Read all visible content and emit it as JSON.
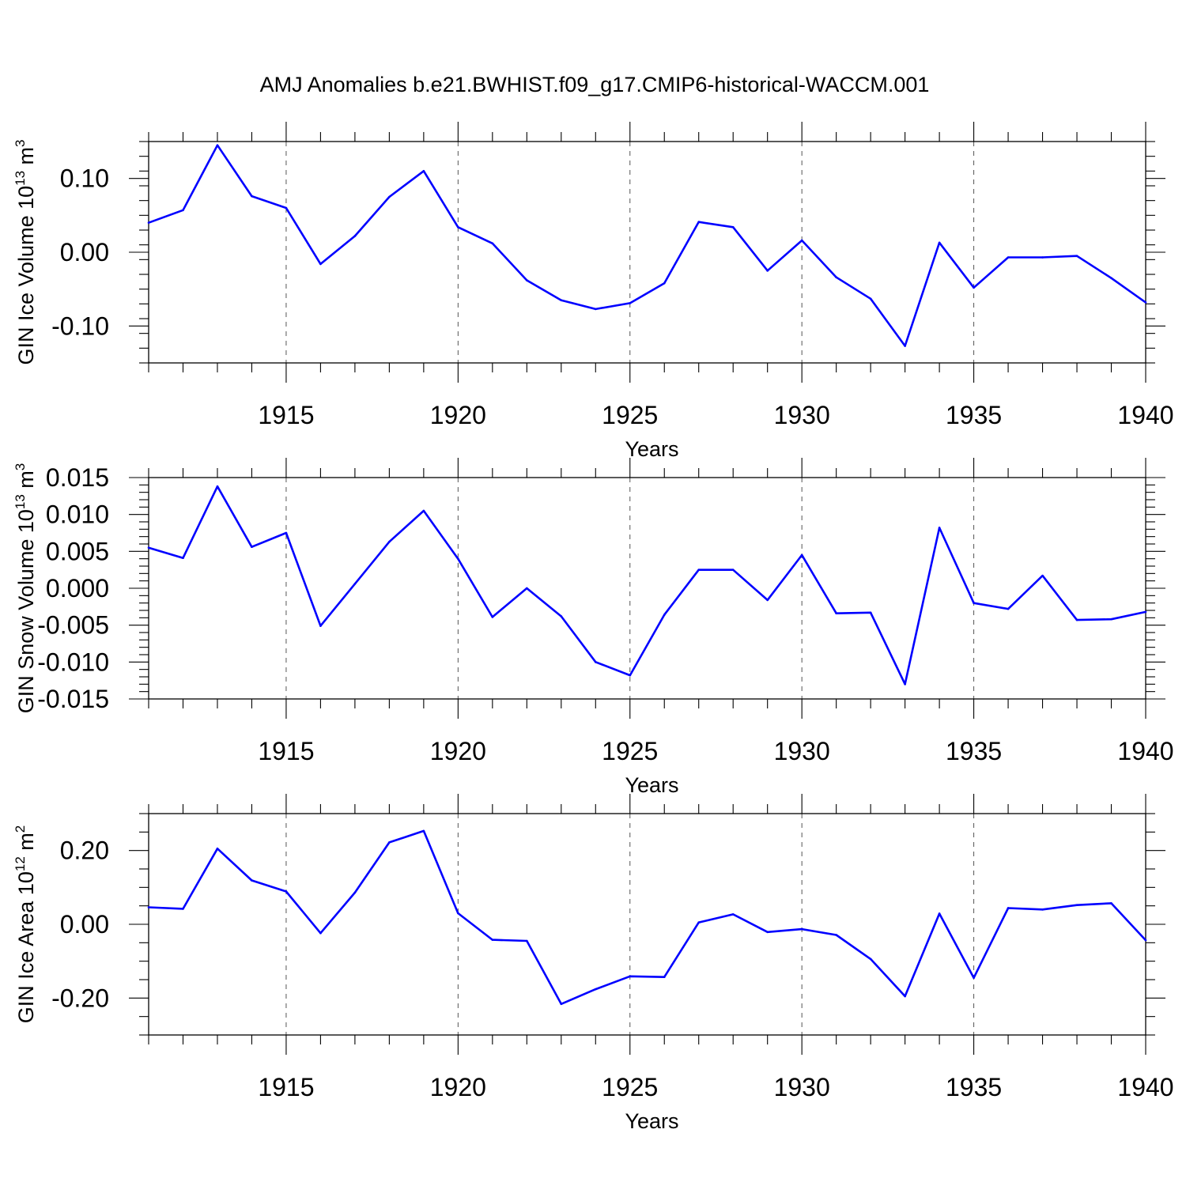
{
  "title": "AMJ Anomalies b.e21.BWHIST.f09_g17.CMIP6-historical-WACCM.001",
  "line_color": "#0000ff",
  "chart_data": [
    {
      "type": "line",
      "ylabel": "GIN Ice Volume 10",
      "ylabel_exp": "13",
      "ylabel_unit": " m",
      "ylabel_unit_exp": "3",
      "xlabel": "Years",
      "xlim": [
        1911,
        1940
      ],
      "ylim": [
        -0.15,
        0.15
      ],
      "xticks": [
        1915,
        1920,
        1925,
        1930,
        1935,
        1940
      ],
      "xtick_labels": [
        "1915",
        "1920",
        "1925",
        "1930",
        "1935",
        "1940"
      ],
      "yticks": [
        -0.1,
        0.0,
        0.1
      ],
      "ytick_labels": [
        "-0.10",
        "0.00",
        "0.10"
      ],
      "yminor_step": 0.02,
      "grid_x": true,
      "x": [
        1911,
        1912,
        1913,
        1914,
        1915,
        1916,
        1917,
        1918,
        1919,
        1920,
        1921,
        1922,
        1923,
        1924,
        1925,
        1926,
        1927,
        1928,
        1929,
        1930,
        1931,
        1932,
        1933,
        1934,
        1935,
        1936,
        1937,
        1938,
        1939,
        1940
      ],
      "values": [
        0.04,
        0.057,
        0.145,
        0.076,
        0.06,
        -0.016,
        0.022,
        0.075,
        0.11,
        0.034,
        0.012,
        -0.038,
        -0.065,
        -0.077,
        -0.069,
        -0.042,
        0.041,
        0.034,
        -0.025,
        0.016,
        -0.034,
        -0.063,
        -0.127,
        0.013,
        -0.048,
        -0.007,
        -0.007,
        -0.005,
        -0.035,
        -0.068
      ]
    },
    {
      "type": "line",
      "ylabel": "GIN Snow Volume 10",
      "ylabel_exp": "13",
      "ylabel_unit": " m",
      "ylabel_unit_exp": "3",
      "xlabel": "Years",
      "xlim": [
        1911,
        1940
      ],
      "ylim": [
        -0.015,
        0.015
      ],
      "xticks": [
        1915,
        1920,
        1925,
        1930,
        1935,
        1940
      ],
      "xtick_labels": [
        "1915",
        "1920",
        "1925",
        "1930",
        "1935",
        "1940"
      ],
      "yticks": [
        -0.015,
        -0.01,
        -0.005,
        0.0,
        0.005,
        0.01,
        0.015
      ],
      "ytick_labels": [
        "-0.015",
        "-0.010",
        "-0.005",
        "0.000",
        "0.005",
        "0.010",
        "0.015"
      ],
      "yminor_step": 0.001,
      "grid_x": true,
      "x": [
        1911,
        1912,
        1913,
        1914,
        1915,
        1916,
        1917,
        1918,
        1919,
        1920,
        1921,
        1922,
        1923,
        1924,
        1925,
        1926,
        1927,
        1928,
        1929,
        1930,
        1931,
        1932,
        1933,
        1934,
        1935,
        1936,
        1937,
        1938,
        1939,
        1940
      ],
      "values": [
        0.0055,
        0.0041,
        0.0138,
        0.0056,
        0.0075,
        -0.0051,
        0.0006,
        0.0063,
        0.0105,
        0.004,
        -0.0039,
        0.0,
        -0.0038,
        -0.01,
        -0.0118,
        -0.0036,
        0.0025,
        0.0025,
        -0.0016,
        0.0045,
        -0.0034,
        -0.0033,
        -0.013,
        0.0082,
        -0.002,
        -0.0028,
        0.0017,
        -0.0043,
        -0.0042,
        -0.0032
      ]
    },
    {
      "type": "line",
      "ylabel": "GIN Ice Area 10",
      "ylabel_exp": "12",
      "ylabel_unit": " m",
      "ylabel_unit_exp": "2",
      "xlabel": "Years",
      "xlim": [
        1911,
        1940
      ],
      "ylim": [
        -0.3,
        0.3
      ],
      "xticks": [
        1915,
        1920,
        1925,
        1930,
        1935,
        1940
      ],
      "xtick_labels": [
        "1915",
        "1920",
        "1925",
        "1930",
        "1935",
        "1940"
      ],
      "yticks": [
        -0.2,
        0.0,
        0.2
      ],
      "ytick_labels": [
        "-0.20",
        "0.00",
        "0.20"
      ],
      "yminor_step": 0.05,
      "grid_x": true,
      "x": [
        1911,
        1912,
        1913,
        1914,
        1915,
        1916,
        1917,
        1918,
        1919,
        1920,
        1921,
        1922,
        1923,
        1924,
        1925,
        1926,
        1927,
        1928,
        1929,
        1930,
        1931,
        1932,
        1933,
        1934,
        1935,
        1936,
        1937,
        1938,
        1939,
        1940
      ],
      "values": [
        0.046,
        0.042,
        0.205,
        0.119,
        0.089,
        -0.024,
        0.086,
        0.222,
        0.253,
        0.03,
        -0.042,
        -0.045,
        -0.216,
        -0.176,
        -0.141,
        -0.143,
        0.005,
        0.027,
        -0.021,
        -0.013,
        -0.029,
        -0.094,
        -0.195,
        0.029,
        -0.145,
        0.044,
        0.04,
        0.052,
        0.057,
        -0.043
      ]
    }
  ]
}
